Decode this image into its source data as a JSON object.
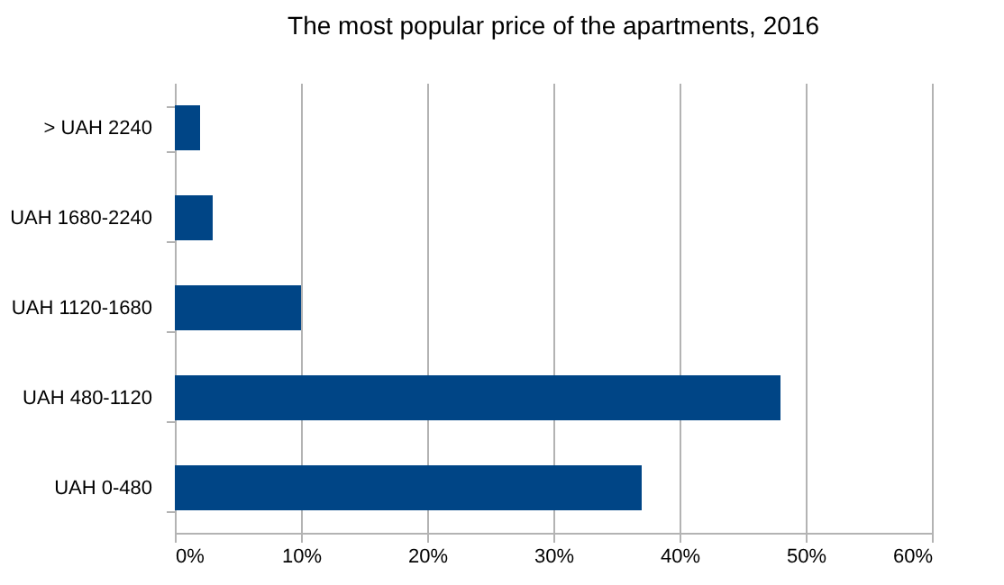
{
  "chart_data": {
    "type": "bar",
    "orientation": "horizontal",
    "title": "The most popular price of the apartments, 2016",
    "categories": [
      "> UAH 2240",
      "UAH 1680-2240",
      "UAH 1120-1680",
      "UAH 480-1120",
      "UAH 0-480"
    ],
    "values": [
      2,
      3,
      10,
      48,
      37
    ],
    "color": "#004586",
    "xlim": [
      0,
      60
    ],
    "xticks": [
      {
        "value": 0,
        "label": "0%"
      },
      {
        "value": 10,
        "label": "10%"
      },
      {
        "value": 20,
        "label": "20%"
      },
      {
        "value": 30,
        "label": "30%"
      },
      {
        "value": 40,
        "label": "40%"
      },
      {
        "value": 50,
        "label": "50%"
      },
      {
        "value": 60,
        "label": "60%"
      }
    ],
    "grid": "x"
  }
}
